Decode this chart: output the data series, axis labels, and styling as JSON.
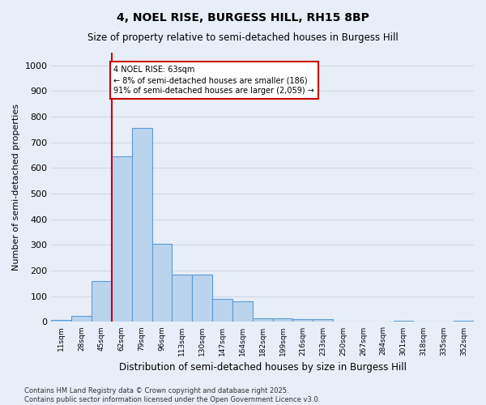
{
  "title1": "4, NOEL RISE, BURGESS HILL, RH15 8BP",
  "title2": "Size of property relative to semi-detached houses in Burgess Hill",
  "xlabel": "Distribution of semi-detached houses by size in Burgess Hill",
  "ylabel": "Number of semi-detached properties",
  "categories": [
    "11sqm",
    "28sqm",
    "45sqm",
    "62sqm",
    "79sqm",
    "96sqm",
    "113sqm",
    "130sqm",
    "147sqm",
    "164sqm",
    "182sqm",
    "199sqm",
    "216sqm",
    "233sqm",
    "250sqm",
    "267sqm",
    "284sqm",
    "301sqm",
    "318sqm",
    "335sqm",
    "352sqm"
  ],
  "values": [
    7,
    22,
    160,
    645,
    757,
    305,
    183,
    183,
    91,
    79,
    14,
    13,
    10,
    12,
    1,
    0,
    0,
    3,
    0,
    0,
    5
  ],
  "bar_color": "#bad4ee",
  "bar_edge_color": "#5b9bd5",
  "vline_index": 3,
  "vline_color": "#cc0000",
  "annotation_text": "4 NOEL RISE: 63sqm\n← 8% of semi-detached houses are smaller (186)\n91% of semi-detached houses are larger (2,059) →",
  "annotation_box_color": "#ffffff",
  "annotation_box_edge": "#cc0000",
  "footer": "Contains HM Land Registry data © Crown copyright and database right 2025.\nContains public sector information licensed under the Open Government Licence v3.0.",
  "ylim": [
    0,
    1050
  ],
  "yticks": [
    0,
    100,
    200,
    300,
    400,
    500,
    600,
    700,
    800,
    900,
    1000
  ],
  "background_color": "#e8eef8",
  "grid_color": "#d0d8e8"
}
